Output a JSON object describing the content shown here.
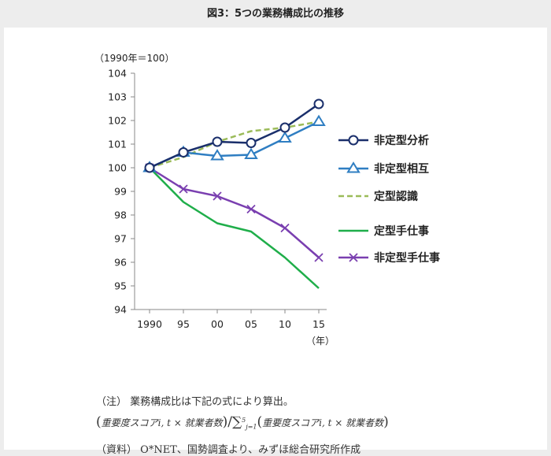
{
  "figure_title": "図3：5つの業務構成比の推移",
  "notes": {
    "note_label": "（注）",
    "note_text": "業務構成比は下記の式により算出。",
    "formula_term": "重要度スコアi, t × 就業者数",
    "formula_slash": "/",
    "formula_sum": "∑",
    "formula_sum_upper": "5",
    "formula_sum_lower": "j=1",
    "formula_term_j": "重要度スコアi, t × 就業者数",
    "source_label": "（資料）",
    "source_text": "O*NET、国勢調査より、みずほ総合研究所作成"
  },
  "chart_data": {
    "type": "line",
    "title": "",
    "ylabel": "（1990年＝100）",
    "xlabel": "（年）",
    "categories": [
      "1990",
      "95",
      "00",
      "05",
      "10",
      "15"
    ],
    "ylim": [
      94,
      104
    ],
    "yticks": [
      94,
      95,
      96,
      97,
      98,
      99,
      100,
      101,
      102,
      103,
      104
    ],
    "grid": false,
    "legend_position": "right",
    "series": [
      {
        "name": "非定型分析",
        "values": [
          100,
          100.65,
          101.1,
          101.05,
          101.7,
          102.7
        ],
        "color": "#1a2f6b",
        "dash": "solid",
        "marker": "circle"
      },
      {
        "name": "非定型相互",
        "values": [
          100,
          100.65,
          100.5,
          100.55,
          101.25,
          101.95
        ],
        "color": "#2f7ec2",
        "dash": "solid",
        "marker": "triangle"
      },
      {
        "name": "定型認識",
        "values": [
          100,
          100.45,
          101.1,
          101.55,
          101.7,
          101.95
        ],
        "color": "#9bbb59",
        "dash": "dashed",
        "marker": "none"
      },
      {
        "name": "定型手仕事",
        "values": [
          100,
          98.55,
          97.65,
          97.3,
          96.2,
          94.9
        ],
        "color": "#1fae4a",
        "dash": "solid",
        "marker": "none"
      },
      {
        "name": "非定型手仕事",
        "values": [
          100,
          99.1,
          98.8,
          98.25,
          97.45,
          96.2
        ],
        "color": "#7a3fb0",
        "dash": "solid",
        "marker": "x"
      }
    ]
  }
}
